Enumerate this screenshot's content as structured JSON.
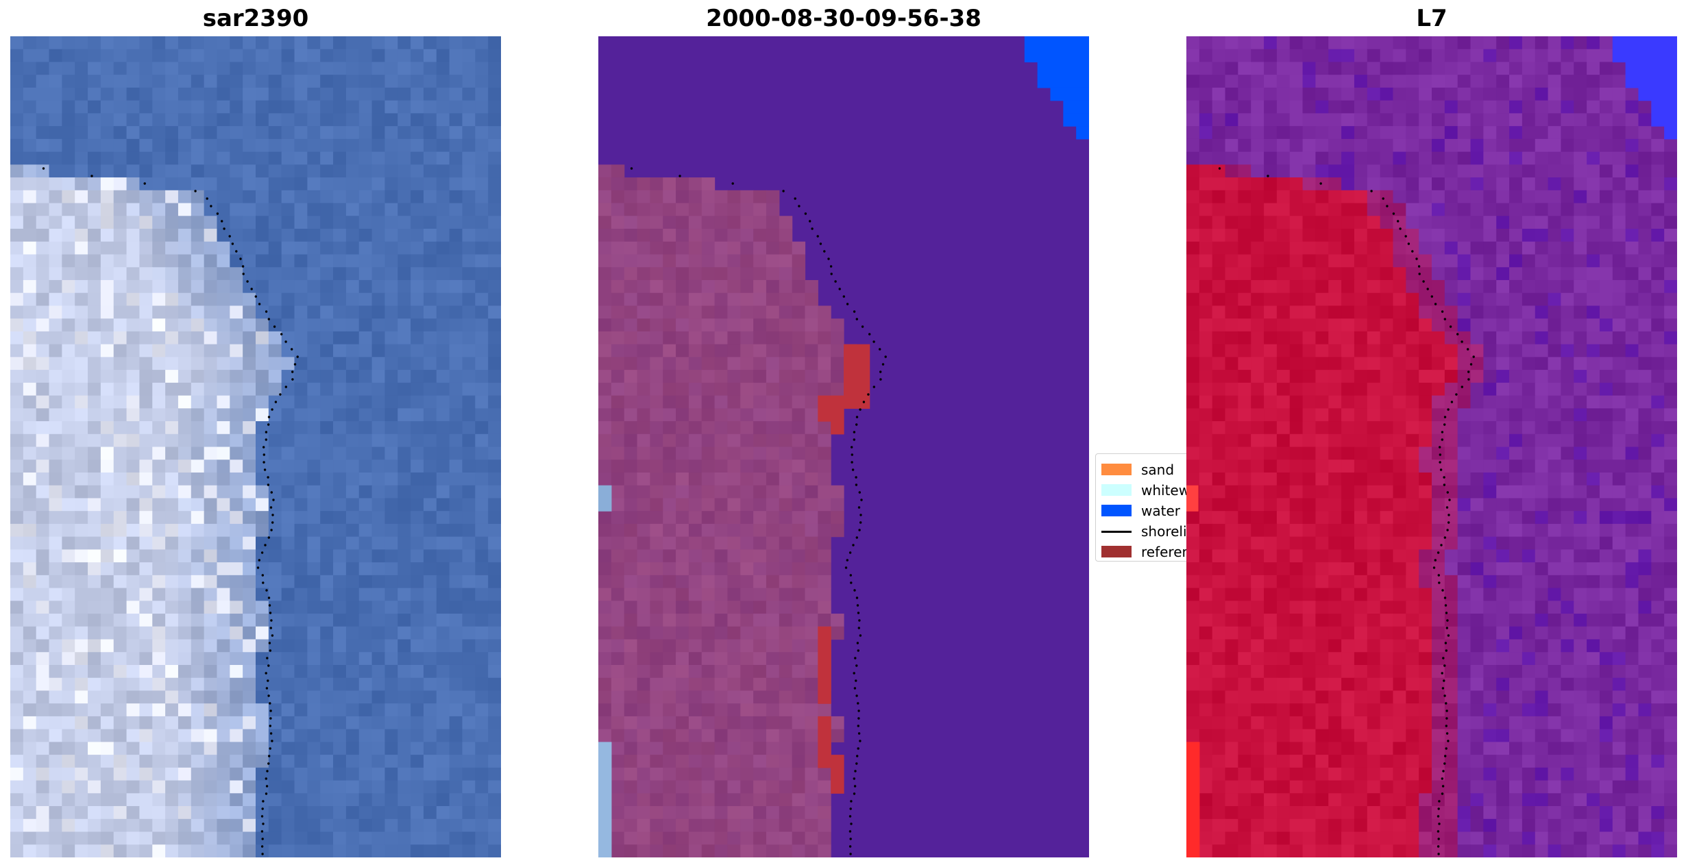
{
  "panels": [
    {
      "title": "sar2390",
      "kind": "rgb-image"
    },
    {
      "title": "2000-08-30-09-56-38",
      "kind": "classified-image"
    },
    {
      "title": "L7",
      "kind": "class-probability-image"
    }
  ],
  "legend": {
    "items": [
      {
        "label": "sand",
        "color": "#ff8c3f",
        "type": "patch"
      },
      {
        "label": "whitewater",
        "color": "#ccffff",
        "type": "patch"
      },
      {
        "label": "water",
        "color": "#0055ff",
        "type": "patch"
      },
      {
        "label": "shoreline",
        "color": "#000000",
        "type": "line"
      },
      {
        "label": "reference",
        "color": "#a03030",
        "type": "patch"
      }
    ]
  },
  "colors": {
    "water_rgb": "#4a6fb3",
    "foam_rgb": "#c2cbe6",
    "bright_rgb": "#eff0fb",
    "class_background": "#54229a",
    "class_land": "#96467f",
    "class_water_corner": "#0055ff",
    "class_reference": "#c0323c",
    "prob_background": "#7a2aa0",
    "prob_land": "#c8103e",
    "prob_water_corner": "#3a3aff",
    "shoreline": "#000000"
  }
}
